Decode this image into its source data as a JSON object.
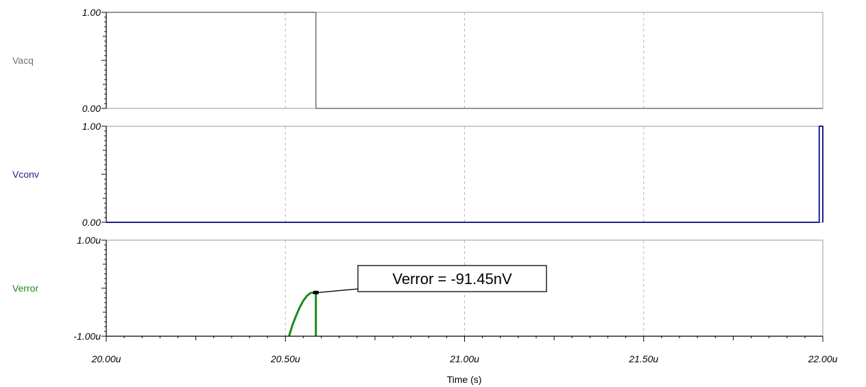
{
  "chart_data": {
    "type": "line",
    "xlabel": "Time (s)",
    "x_unit_scale": "u",
    "xlim": [
      20.0,
      22.0
    ],
    "x_ticks": [
      20.0,
      20.5,
      21.0,
      21.5,
      22.0
    ],
    "x_tick_labels": [
      "20.00u",
      "20.50u",
      "21.00u",
      "21.50u",
      "22.00u"
    ],
    "grid": "vertical dashed",
    "panels": [
      {
        "name": "Vacq",
        "color": "#707070",
        "ylim": [
          0.0,
          1.0
        ],
        "y_tick_labels": [
          "1.00",
          "0.00"
        ],
        "x": [
          20.0,
          20.585,
          20.585,
          22.0
        ],
        "y": [
          1.0,
          1.0,
          0.0,
          0.0
        ]
      },
      {
        "name": "Vconv",
        "color": "#1f1f8f",
        "ylim": [
          0.0,
          1.0
        ],
        "y_tick_labels": [
          "1.00",
          "0.00"
        ],
        "x": [
          20.0,
          21.99,
          21.99,
          22.0,
          22.0
        ],
        "y": [
          0.0,
          0.0,
          1.0,
          1.0,
          0.0
        ]
      },
      {
        "name": "Verror",
        "color": "#1a8a1a",
        "ylim": [
          -1.0,
          1.0
        ],
        "y_tick_labels": [
          "1.00u",
          "-1.00u"
        ],
        "x": [
          20.51,
          20.52,
          20.53,
          20.54,
          20.55,
          20.56,
          20.57,
          20.585,
          20.585
        ],
        "y": [
          -1.0,
          -0.76,
          -0.57,
          -0.4,
          -0.26,
          -0.16,
          -0.1,
          -0.09,
          -1.0
        ],
        "annotation": {
          "text": "Verror = -91.45nV",
          "x": 20.585,
          "y": -0.09
        }
      }
    ]
  }
}
